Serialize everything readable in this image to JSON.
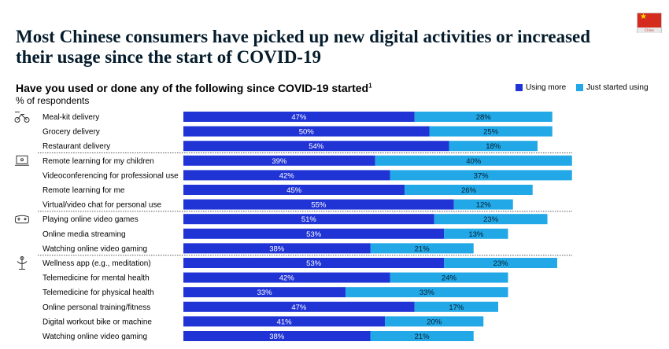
{
  "headline": "Most Chinese consumers have picked up new digital activities or increased their usage since the start of COVID-19",
  "flag_caption": "China",
  "chart_data": {
    "type": "bar",
    "orientation": "horizontal",
    "stacked": true,
    "title": "Have you used or done any of the following since COVID-19 started",
    "title_footnote": "1",
    "subtitle": "% of respondents",
    "legend_position": "top-right",
    "series": [
      {
        "name": "Using more",
        "color": "#2034d6"
      },
      {
        "name": "Just started using",
        "color": "#22a8e6"
      }
    ],
    "groups": [
      {
        "icon": "delivery-icon",
        "items": [
          {
            "label": "Meal-kit delivery",
            "values": [
              47,
              28
            ]
          },
          {
            "label": "Grocery delivery",
            "values": [
              50,
              25
            ]
          },
          {
            "label": "Restaurant delivery",
            "values": [
              54,
              18
            ]
          }
        ]
      },
      {
        "icon": "laptop-icon",
        "items": [
          {
            "label": "Remote learning for my children",
            "values": [
              39,
              40
            ]
          },
          {
            "label": "Videoconferencing for professional use",
            "values": [
              42,
              37
            ]
          },
          {
            "label": "Remote learning for me",
            "values": [
              45,
              26
            ]
          },
          {
            "label": "Virtual/video chat for personal use",
            "values": [
              55,
              12
            ]
          }
        ]
      },
      {
        "icon": "gamepad-icon",
        "items": [
          {
            "label": "Playing online video games",
            "values": [
              51,
              23
            ]
          },
          {
            "label": "Online media streaming",
            "values": [
              53,
              13
            ]
          },
          {
            "label": "Watching online video gaming",
            "values": [
              38,
              21
            ]
          }
        ]
      },
      {
        "icon": "wellness-icon",
        "items": [
          {
            "label": "Wellness app (e.g., meditation)",
            "values": [
              53,
              23
            ]
          },
          {
            "label": "Telemedicine for mental health",
            "values": [
              42,
              24
            ]
          },
          {
            "label": "Telemedicine for physical health",
            "values": [
              33,
              33
            ]
          },
          {
            "label": "Online personal training/fitness",
            "values": [
              47,
              17
            ]
          },
          {
            "label": "Digital workout bike or machine",
            "values": [
              41,
              20
            ]
          },
          {
            "label": "Watching online video gaming",
            "values": [
              38,
              21
            ]
          }
        ]
      }
    ],
    "value_suffix": "%"
  }
}
